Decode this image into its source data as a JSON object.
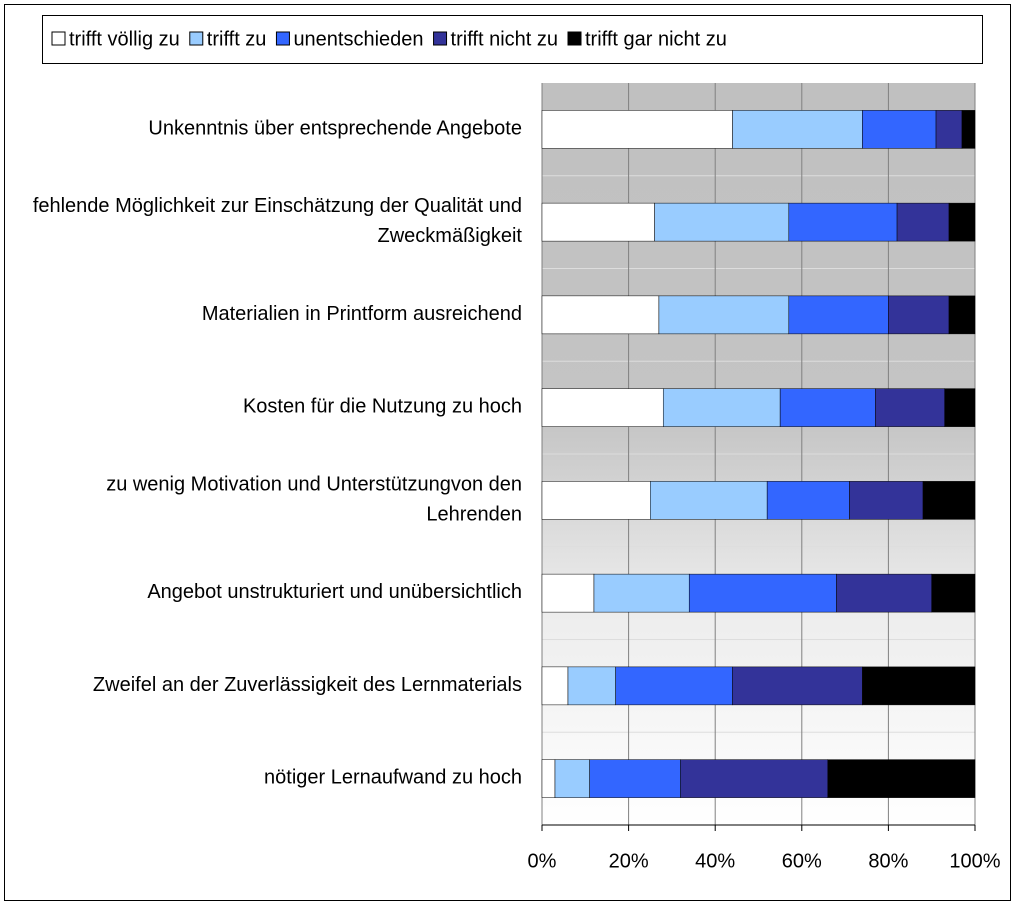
{
  "chart_data": {
    "type": "stacked_bar_horizontal",
    "categories": [
      "Unkenntnis über entsprechende Angebote",
      "fehlende Möglichkeit zur Einschätzung der Qualität und Zweckmäßigkeit",
      "Materialien in Printform ausreichend",
      "Kosten für die Nutzung zu hoch",
      "zu wenig Motivation und Unterstützungvon den Lehrenden",
      "Angebot unstrukturiert und unübersichtlich",
      "Zweifel an der Zuverlässigkeit des Lernmaterials",
      "nötiger Lernaufwand zu hoch"
    ],
    "series": [
      {
        "name": "trifft völlig zu",
        "color": "#ffffff",
        "values": [
          44,
          26,
          27,
          28,
          25,
          12,
          6,
          3
        ]
      },
      {
        "name": "trifft zu",
        "color": "#99ccff",
        "values": [
          30,
          31,
          30,
          27,
          27,
          22,
          11,
          8
        ]
      },
      {
        "name": "unentschieden",
        "color": "#3366ff",
        "values": [
          17,
          25,
          23,
          22,
          19,
          34,
          27,
          21
        ]
      },
      {
        "name": "trifft nicht zu",
        "color": "#333399",
        "values": [
          6,
          12,
          14,
          16,
          17,
          22,
          30,
          34
        ]
      },
      {
        "name": "trifft gar nicht zu",
        "color": "#000000",
        "values": [
          3,
          6,
          6,
          7,
          12,
          10,
          26,
          34
        ]
      }
    ],
    "xlim": [
      0,
      100
    ],
    "xticks": [
      {
        "value": 0,
        "label": "0%"
      },
      {
        "value": 20,
        "label": "20%"
      },
      {
        "value": 40,
        "label": "40%"
      },
      {
        "value": 60,
        "label": "60%"
      },
      {
        "value": 80,
        "label": "80%"
      },
      {
        "value": 100,
        "label": "100%"
      }
    ],
    "grid": true,
    "legend": "top"
  }
}
